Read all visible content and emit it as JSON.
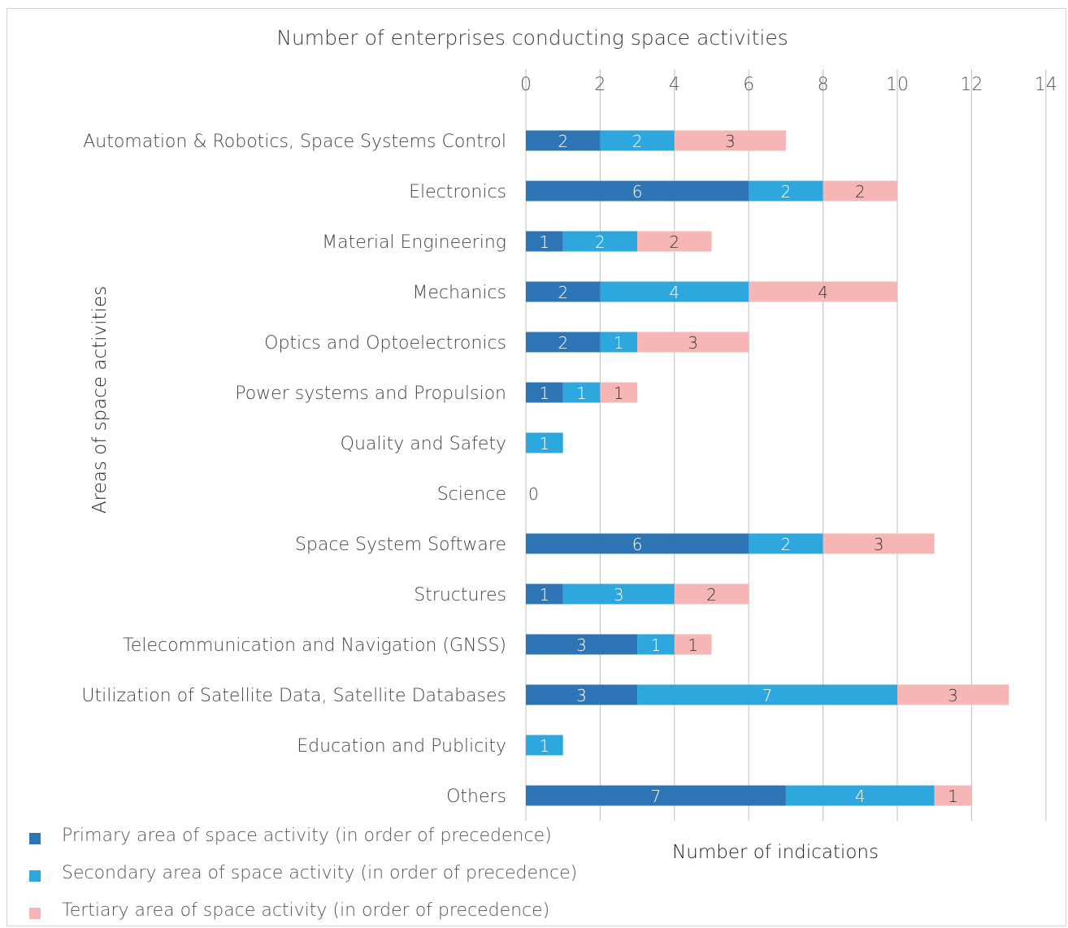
{
  "chart_data": {
    "type": "bar",
    "orientation": "horizontal",
    "stacked": true,
    "title": "Number of enterprises conducting space activities",
    "xlabel": "Number of indications",
    "ylabel": "Areas of space activities",
    "xlim": [
      0,
      14
    ],
    "xticks": [
      0,
      2,
      4,
      6,
      8,
      10,
      12,
      14
    ],
    "grid": "vertical",
    "legend_position": "bottom-left",
    "categories": [
      "Automation & Robotics, Space Systems Control",
      "Electronics",
      "Material Engineering",
      "Mechanics",
      "Optics and Optoelectronics",
      "Power systems and Propulsion",
      "Quality and Safety",
      "Science",
      "Space System Software",
      "Structures",
      "Telecommunication and Navigation (GNSS)",
      "Utilization of Satellite Data, Satellite Databases",
      "Education and Publicity",
      "Others"
    ],
    "series": [
      {
        "name": "Primary area of space activity (in order of precedence)",
        "color": "#2e75b6",
        "label_color": "#ffffff",
        "values": [
          2,
          6,
          1,
          2,
          2,
          1,
          0,
          0,
          6,
          1,
          3,
          3,
          0,
          7
        ]
      },
      {
        "name": "Secondary area of space activity (in order of precedence)",
        "color": "#2ea6de",
        "label_color": "#ffffff",
        "values": [
          2,
          2,
          2,
          4,
          1,
          1,
          1,
          0,
          2,
          3,
          1,
          7,
          1,
          4
        ]
      },
      {
        "name": "Tertiary area of space activity (in order of precedence)",
        "color": "#f7b6b6",
        "label_color": "#333333",
        "values": [
          3,
          2,
          2,
          4,
          3,
          1,
          0,
          0,
          3,
          2,
          1,
          3,
          0,
          1
        ]
      }
    ],
    "zero_labels": [
      "",
      "",
      "",
      "",
      "",
      "",
      "",
      "0",
      "",
      "",
      "",
      "",
      "",
      ""
    ]
  }
}
